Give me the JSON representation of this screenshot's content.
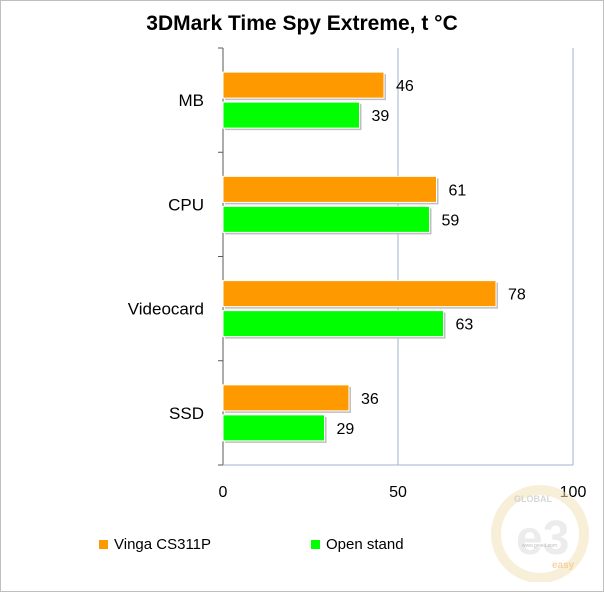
{
  "chart_data": {
    "type": "bar",
    "orientation": "horizontal",
    "title": "3DMark Time Spy Extreme, t °C",
    "categories": [
      "MB",
      "CPU",
      "Videocard",
      "SSD"
    ],
    "series": [
      {
        "name": "Vinga CS311P",
        "color": "#ff9900",
        "values": [
          46,
          61,
          78,
          36
        ]
      },
      {
        "name": "Open stand",
        "color": "#00ff00",
        "values": [
          39,
          59,
          63,
          29
        ]
      }
    ],
    "xlim": [
      0,
      100
    ],
    "xticks": [
      "0",
      "50",
      "100"
    ],
    "grid": true,
    "legend_position": "bottom"
  },
  "watermark": {
    "top_text": "GLOBAL",
    "big_text": "e3",
    "small_text": "easy",
    "url_text": "www.geeid.com"
  }
}
